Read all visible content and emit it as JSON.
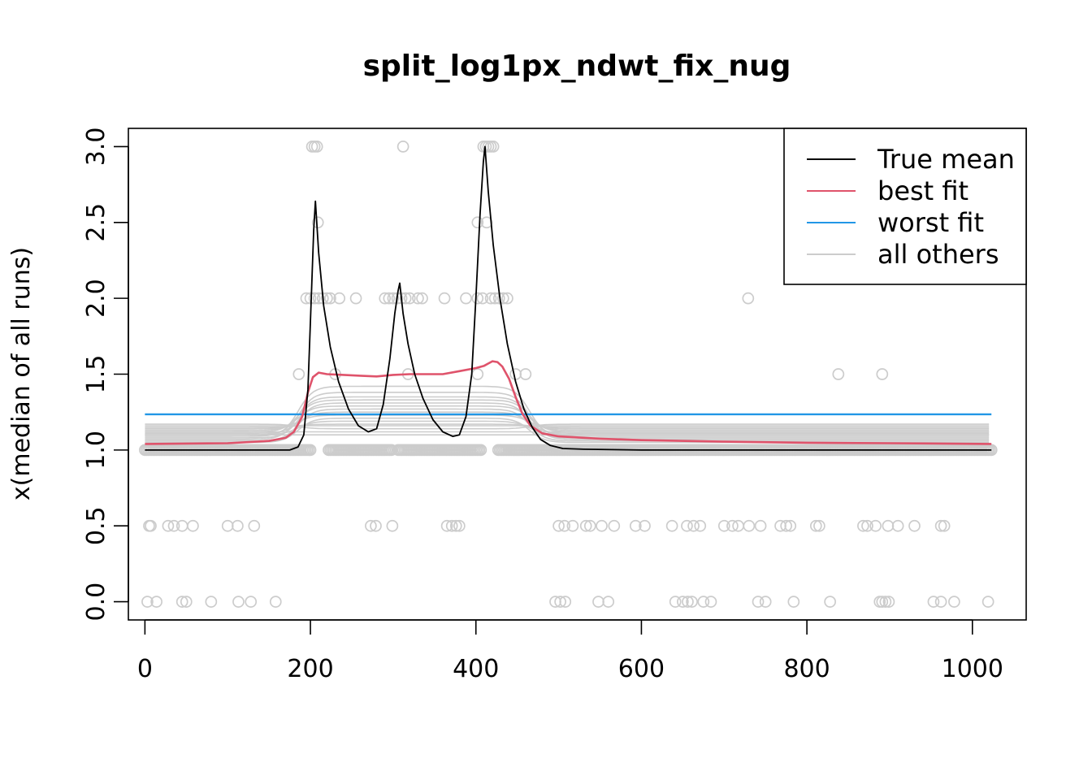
{
  "chart_data": {
    "type": "scatter",
    "title": "split_log1px_ndwt_fix_nug",
    "xlabel": "",
    "ylabel": "x(median of all runs)",
    "xlim": [
      -20,
      1065
    ],
    "ylim": [
      -0.12,
      3.12
    ],
    "x_ticks": [
      0,
      200,
      400,
      600,
      800,
      1000
    ],
    "y_ticks": [
      0.0,
      0.5,
      1.0,
      1.5,
      2.0,
      2.5,
      3.0
    ],
    "x_tick_labels": [
      "0",
      "200",
      "400",
      "600",
      "800",
      "1000"
    ],
    "y_tick_labels": [
      "0.0",
      "0.5",
      "1.0",
      "1.5",
      "2.0",
      "2.5",
      "3.0"
    ],
    "grid": false,
    "legend_position": "top-right",
    "colors": {
      "true_mean": "#000000",
      "best_fit": "#DF536B",
      "worst_fit": "#2297E6",
      "all_others": "#CCCCCC",
      "points": "#CCCCCC"
    },
    "legend": [
      {
        "label": "True mean",
        "color": "#000000"
      },
      {
        "label": "best fit",
        "color": "#DF536B"
      },
      {
        "label": "worst fit",
        "color": "#2297E6"
      },
      {
        "label": "all others",
        "color": "#CCCCCC"
      }
    ],
    "true_mean": {
      "baseline": 1.0,
      "peaks": [
        {
          "center": 206,
          "height": 2.64
        },
        {
          "center": 308,
          "height": 2.1
        },
        {
          "center": 411,
          "height": 3.0
        }
      ],
      "x": [
        0,
        175,
        185,
        192,
        197,
        201,
        204,
        206,
        210,
        216,
        224,
        234,
        246,
        258,
        270,
        280,
        288,
        296,
        302,
        306,
        308,
        312,
        318,
        326,
        336,
        348,
        360,
        372,
        380,
        388,
        395,
        400,
        405,
        409,
        411,
        415,
        421,
        429,
        438,
        448,
        458,
        468,
        478,
        490,
        505,
        530,
        600,
        700,
        1023
      ],
      "y": [
        1.0,
        1.0,
        1.02,
        1.1,
        1.4,
        2.0,
        2.45,
        2.64,
        2.3,
        1.95,
        1.68,
        1.45,
        1.27,
        1.16,
        1.12,
        1.14,
        1.3,
        1.6,
        1.9,
        2.05,
        2.1,
        1.9,
        1.7,
        1.5,
        1.34,
        1.2,
        1.12,
        1.09,
        1.1,
        1.22,
        1.5,
        2.0,
        2.55,
        2.9,
        3.0,
        2.7,
        2.35,
        2.0,
        1.7,
        1.45,
        1.27,
        1.15,
        1.07,
        1.03,
        1.01,
        1.005,
        1.0,
        1.0,
        1.0
      ]
    },
    "best_fit": {
      "x": [
        0,
        100,
        150,
        170,
        180,
        190,
        197,
        203,
        210,
        220,
        240,
        260,
        280,
        300,
        320,
        340,
        360,
        380,
        400,
        410,
        415,
        420,
        426,
        432,
        440,
        448,
        456,
        466,
        480,
        500,
        550,
        600,
        700,
        800,
        900,
        1023
      ],
      "y": [
        1.04,
        1.045,
        1.06,
        1.08,
        1.12,
        1.22,
        1.38,
        1.48,
        1.51,
        1.5,
        1.495,
        1.49,
        1.485,
        1.495,
        1.5,
        1.5,
        1.5,
        1.52,
        1.54,
        1.555,
        1.57,
        1.585,
        1.58,
        1.55,
        1.47,
        1.35,
        1.24,
        1.16,
        1.11,
        1.09,
        1.075,
        1.065,
        1.055,
        1.048,
        1.045,
        1.04
      ]
    },
    "worst_fit": {
      "x": [
        0,
        1023
      ],
      "y": [
        1.235,
        1.235
      ]
    },
    "all_others": [
      {
        "plateau": 1.42,
        "base": 1.09
      },
      {
        "plateau": 1.38,
        "base": 1.07
      },
      {
        "plateau": 1.35,
        "base": 1.1
      },
      {
        "plateau": 1.33,
        "base": 1.12
      },
      {
        "plateau": 1.31,
        "base": 1.08
      },
      {
        "plateau": 1.29,
        "base": 1.13
      },
      {
        "plateau": 1.27,
        "base": 1.06
      },
      {
        "plateau": 1.25,
        "base": 1.11
      },
      {
        "plateau": 1.23,
        "base": 1.14
      },
      {
        "plateau": 1.21,
        "base": 1.05
      },
      {
        "plateau": 1.19,
        "base": 1.1
      },
      {
        "plateau": 1.17,
        "base": 1.15
      },
      {
        "plateau": 1.16,
        "base": 1.16
      },
      {
        "plateau": 1.14,
        "base": 1.17
      },
      {
        "plateau": 1.12,
        "base": 1.12
      },
      {
        "plateau": 1.1,
        "base": 1.1
      }
    ],
    "points_level_1_ranges": [
      [
        0,
        200
      ],
      [
        222,
        298
      ],
      [
        306,
        406
      ],
      [
        427,
        1023
      ]
    ],
    "points": [
      [
        5,
        0.5
      ],
      [
        7,
        0.5
      ],
      [
        28,
        0.5
      ],
      [
        35,
        0.5
      ],
      [
        45,
        0.5
      ],
      [
        58,
        0.5
      ],
      [
        100,
        0.5
      ],
      [
        112,
        0.5
      ],
      [
        132,
        0.5
      ],
      [
        273,
        0.5
      ],
      [
        279,
        0.5
      ],
      [
        299,
        0.5
      ],
      [
        365,
        0.5
      ],
      [
        371,
        0.5
      ],
      [
        376,
        0.5
      ],
      [
        380,
        0.5
      ],
      [
        500,
        0.5
      ],
      [
        507,
        0.5
      ],
      [
        517,
        0.5
      ],
      [
        533,
        0.5
      ],
      [
        538,
        0.5
      ],
      [
        552,
        0.5
      ],
      [
        567,
        0.5
      ],
      [
        593,
        0.5
      ],
      [
        604,
        0.5
      ],
      [
        637,
        0.5
      ],
      [
        655,
        0.5
      ],
      [
        663,
        0.5
      ],
      [
        671,
        0.5
      ],
      [
        700,
        0.5
      ],
      [
        710,
        0.5
      ],
      [
        717,
        0.5
      ],
      [
        730,
        0.5
      ],
      [
        744,
        0.5
      ],
      [
        768,
        0.5
      ],
      [
        775,
        0.5
      ],
      [
        780,
        0.5
      ],
      [
        811,
        0.5
      ],
      [
        815,
        0.5
      ],
      [
        868,
        0.5
      ],
      [
        873,
        0.5
      ],
      [
        883,
        0.5
      ],
      [
        898,
        0.5
      ],
      [
        910,
        0.5
      ],
      [
        930,
        0.5
      ],
      [
        962,
        0.5
      ],
      [
        966,
        0.5
      ],
      [
        3,
        0.0
      ],
      [
        14,
        0.0
      ],
      [
        45,
        0.0
      ],
      [
        50,
        0.0
      ],
      [
        80,
        0.0
      ],
      [
        113,
        0.0
      ],
      [
        128,
        0.0
      ],
      [
        158,
        0.0
      ],
      [
        496,
        0.0
      ],
      [
        502,
        0.0
      ],
      [
        508,
        0.0
      ],
      [
        548,
        0.0
      ],
      [
        560,
        0.0
      ],
      [
        641,
        0.0
      ],
      [
        650,
        0.0
      ],
      [
        656,
        0.0
      ],
      [
        661,
        0.0
      ],
      [
        675,
        0.0
      ],
      [
        684,
        0.0
      ],
      [
        741,
        0.0
      ],
      [
        750,
        0.0
      ],
      [
        784,
        0.0
      ],
      [
        828,
        0.0
      ],
      [
        888,
        0.0
      ],
      [
        891,
        0.0
      ],
      [
        895,
        0.0
      ],
      [
        899,
        0.0
      ],
      [
        953,
        0.0
      ],
      [
        962,
        0.0
      ],
      [
        978,
        0.0
      ],
      [
        1019,
        0.0
      ],
      [
        202,
        3.0
      ],
      [
        205,
        3.0
      ],
      [
        208,
        3.0
      ],
      [
        312,
        3.0
      ],
      [
        409,
        3.0
      ],
      [
        412,
        3.0
      ],
      [
        415,
        3.0
      ],
      [
        418,
        3.0
      ],
      [
        421,
        3.0
      ],
      [
        209,
        2.5
      ],
      [
        402,
        2.5
      ],
      [
        413,
        2.5
      ],
      [
        195,
        2.0
      ],
      [
        200,
        2.0
      ],
      [
        205,
        2.0
      ],
      [
        210,
        2.0
      ],
      [
        215,
        2.0
      ],
      [
        220,
        2.0
      ],
      [
        224,
        2.0
      ],
      [
        235,
        2.0
      ],
      [
        255,
        2.0
      ],
      [
        290,
        2.0
      ],
      [
        295,
        2.0
      ],
      [
        300,
        2.0
      ],
      [
        305,
        2.0
      ],
      [
        310,
        2.0
      ],
      [
        315,
        2.0
      ],
      [
        320,
        2.0
      ],
      [
        330,
        2.0
      ],
      [
        335,
        2.0
      ],
      [
        362,
        2.0
      ],
      [
        388,
        2.0
      ],
      [
        402,
        2.0
      ],
      [
        408,
        2.0
      ],
      [
        418,
        2.0
      ],
      [
        423,
        2.0
      ],
      [
        428,
        2.0
      ],
      [
        433,
        2.0
      ],
      [
        438,
        2.0
      ],
      [
        729,
        2.0
      ],
      [
        186,
        1.5
      ],
      [
        230,
        1.5
      ],
      [
        318,
        1.5
      ],
      [
        402,
        1.5
      ],
      [
        448,
        1.5
      ],
      [
        460,
        1.5
      ],
      [
        838,
        1.5
      ],
      [
        891,
        1.5
      ]
    ]
  }
}
